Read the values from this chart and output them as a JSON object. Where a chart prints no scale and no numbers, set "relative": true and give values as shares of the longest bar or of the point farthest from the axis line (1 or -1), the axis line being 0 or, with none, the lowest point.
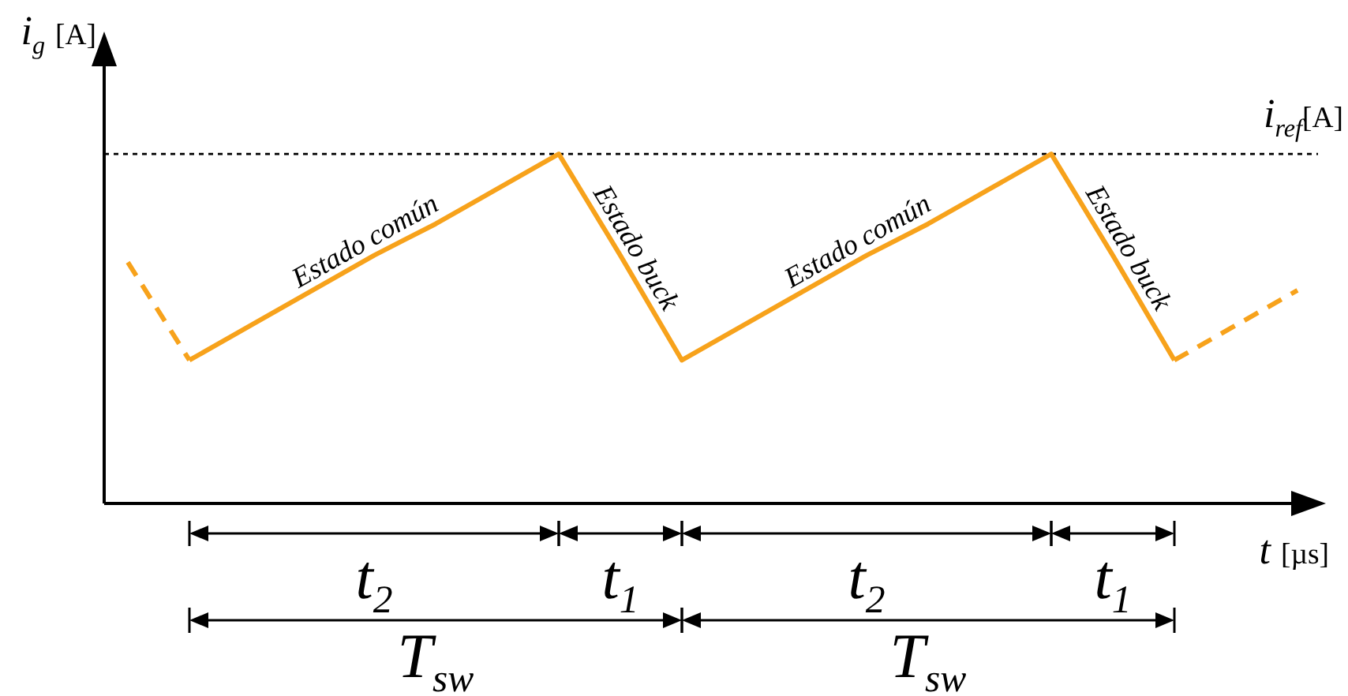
{
  "chart_data": {
    "type": "line",
    "relative": true,
    "xlabel": "t [µs]",
    "ylabel": "i$_{g}$ [A]",
    "categories": [
      null,
      null,
      null,
      null,
      null,
      null,
      null,
      null,
      null,
      null,
      null,
      null,
      null,
      null,
      null,
      null,
      null,
      null,
      null,
      null
    ],
    "series": [
      {
        "color": "#f7a21b",
        "line_style": "dashed",
        "values": [
          0.69,
          0.41,
          null,
          null,
          null,
          null,
          null,
          null,
          null,
          null,
          null,
          null,
          null,
          null,
          null,
          null,
          null,
          null,
          null,
          null
        ]
      },
      {
        "color": "#f7a21b",
        "line_style": "solid",
        "values": [
          null,
          0.41,
          0.51,
          0.61,
          0.71,
          0.8,
          0.9,
          1,
          0.71,
          0.41,
          0.51,
          0.61,
          0.71,
          0.8,
          0.9,
          1,
          0.71,
          0.41,
          null,
          null
        ]
      },
      {
        "color": "#f7a21b",
        "line_style": "dashed",
        "values": [
          null,
          null,
          null,
          null,
          null,
          null,
          null,
          null,
          null,
          null,
          null,
          null,
          null,
          null,
          null,
          null,
          null,
          0.41,
          0.51,
          0.61
        ]
      }
    ],
    "ref_lines": [
      {
        "axis": "y",
        "value": 1,
        "label": "i$_{ref}$[A]",
        "color": "#000000",
        "line_style": "dotted"
      }
    ],
    "annotations": [
      "Estado común",
      "Estado buck",
      "Estado común",
      "Estado buck",
      "t$_{2}$",
      "t$_{1}$",
      "t$_{2}$",
      "t$_{1}$",
      "T$_{sw}$",
      "T$_{sw}$"
    ],
    "marker": "none"
  }
}
